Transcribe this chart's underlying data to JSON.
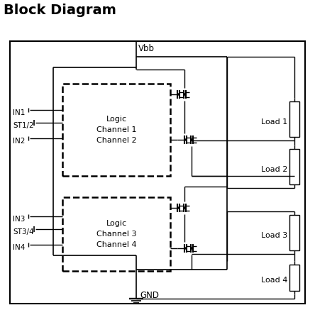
{
  "title": "Block Diagram",
  "title_fontsize": 14,
  "title_fontweight": "bold",
  "background_color": "#ffffff",
  "line_color": "#000000",
  "vbb_label": "Vbb",
  "gnd_label": "GND",
  "input_labels_top": [
    "IN1",
    "ST1/2",
    "IN2"
  ],
  "input_labels_bot": [
    "IN3",
    "ST3/4",
    "IN4"
  ],
  "logic_top_text": "Logic\nChannel 1\nChannel 2",
  "logic_bot_text": "Logic\nChannel 3\nChannel 4",
  "load_labels": [
    "Load 1",
    "Load 2",
    "Load 3",
    "Load 4"
  ]
}
